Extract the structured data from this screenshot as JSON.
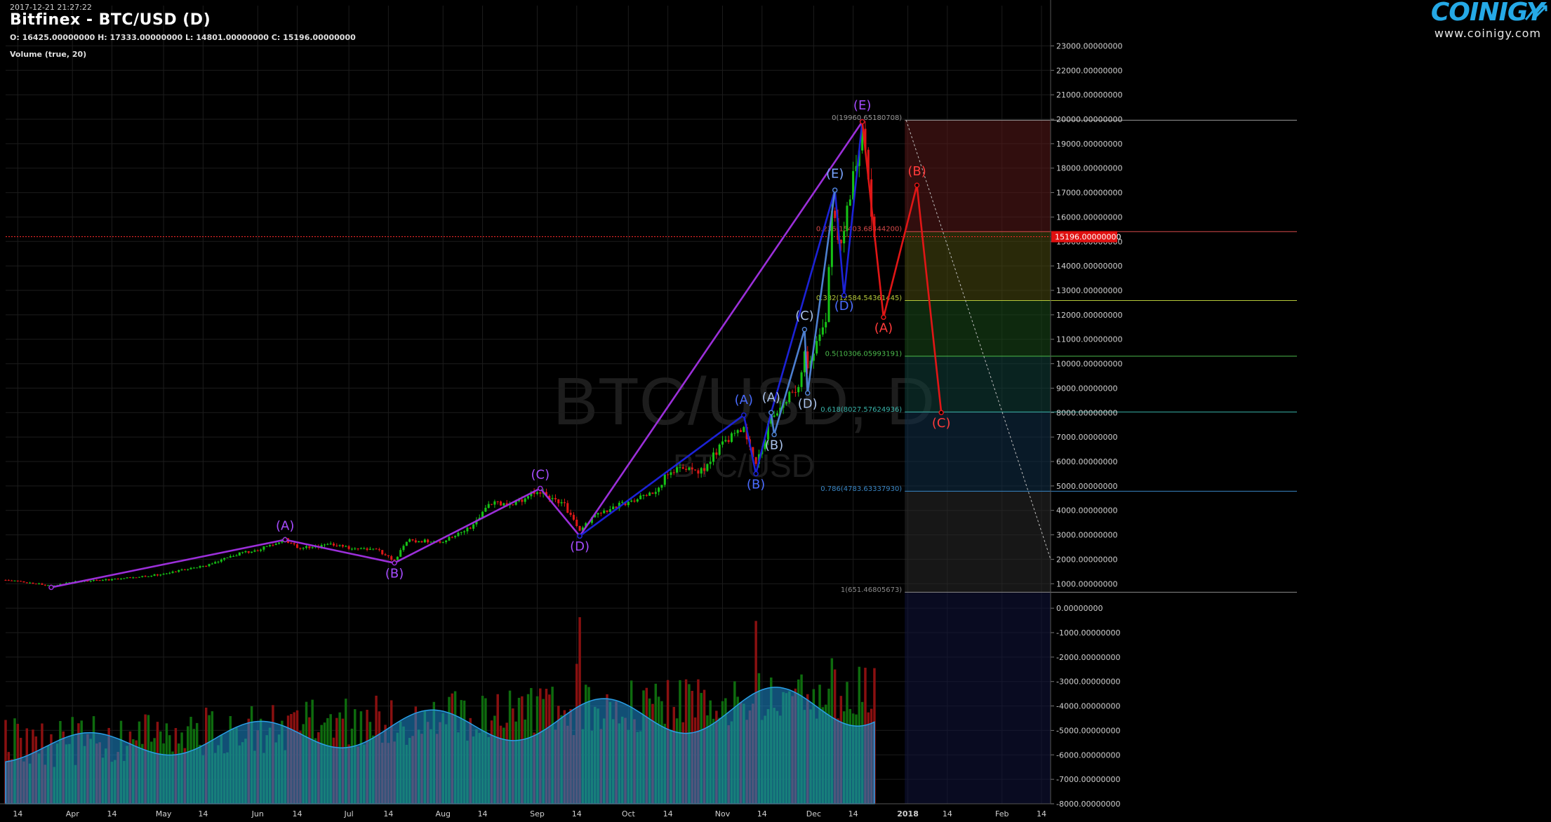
{
  "header": {
    "timestamp": "2017-12-21 21:27:22",
    "title": "Bitfinex - BTC/USD (D)",
    "ohlc": "O: 16425.00000000 H: 17333.00000000 L: 14801.00000000 C: 15196.00000000",
    "volume_label": "Volume (true, 20)"
  },
  "logo": {
    "word": "COINIGY",
    "url": "www.coinigy.com"
  },
  "watermark": {
    "main": "BTC/USD, D",
    "sub": "BTC/USD"
  },
  "chart_data": {
    "type": "candlestick",
    "title": "Bitfinex - BTC/USD (D)",
    "ylim": [
      -8000,
      23500
    ],
    "y_tick_labels": [
      "23000.00000000",
      "22000.00000000",
      "21000.00000000",
      "20000.00000000",
      "19000.00000000",
      "18000.00000000",
      "17000.00000000",
      "16000.00000000",
      "15000.00000000",
      "14000.00000000",
      "13000.00000000",
      "12000.00000000",
      "11000.00000000",
      "10000.00000000",
      "9000.00000000",
      "8000.00000000",
      "7000.00000000",
      "6000.00000000",
      "5000.00000000",
      "4000.00000000",
      "3000.00000000",
      "2000.00000000",
      "1000.00000000",
      "0.00000000",
      "-1000.00000000",
      "-2000.00000000",
      "-3000.00000000",
      "-4000.00000000",
      "-5000.00000000",
      "-6000.00000000",
      "-7000.00000000",
      "-8000.00000000"
    ],
    "x_tick_labels": [
      {
        "date": "2017-03-14",
        "label": "14"
      },
      {
        "date": "2017-04-01",
        "label": "Apr"
      },
      {
        "date": "2017-04-14",
        "label": "14"
      },
      {
        "date": "2017-05-01",
        "label": "May"
      },
      {
        "date": "2017-05-14",
        "label": "14"
      },
      {
        "date": "2017-06-01",
        "label": "Jun"
      },
      {
        "date": "2017-06-14",
        "label": "14"
      },
      {
        "date": "2017-07-01",
        "label": "Jul"
      },
      {
        "date": "2017-07-14",
        "label": "14"
      },
      {
        "date": "2017-08-01",
        "label": "Aug"
      },
      {
        "date": "2017-08-14",
        "label": "14"
      },
      {
        "date": "2017-09-01",
        "label": "Sep"
      },
      {
        "date": "2017-09-14",
        "label": "14"
      },
      {
        "date": "2017-10-01",
        "label": "Oct"
      },
      {
        "date": "2017-10-14",
        "label": "14"
      },
      {
        "date": "2017-11-01",
        "label": "Nov"
      },
      {
        "date": "2017-11-14",
        "label": "14"
      },
      {
        "date": "2017-12-01",
        "label": "Dec"
      },
      {
        "date": "2017-12-14",
        "label": "14"
      },
      {
        "date": "2018-01-01",
        "label": "2018",
        "bold": true
      },
      {
        "date": "2018-01-14",
        "label": "14"
      },
      {
        "date": "2018-02-01",
        "label": "Feb"
      },
      {
        "date": "2018-02-14",
        "label": "14"
      }
    ],
    "x_range": [
      "2017-03-10",
      "2018-02-17"
    ],
    "last_price": 15196,
    "last_price_label": "15196.00000000",
    "fibonacci": {
      "start_date": "2017-12-31",
      "levels": [
        {
          "ratio": "0",
          "price": 19960.65180708,
          "label": "0(19960.65180708)",
          "color": "#999999"
        },
        {
          "ratio": "0.236",
          "price": 15403.684442,
          "label": "0.236(15403.68444200)",
          "color": "#d84a4a"
        },
        {
          "ratio": "0.382",
          "price": 12584.54361445,
          "label": "0.382(12584.54361445)",
          "color": "#b6c93a"
        },
        {
          "ratio": "0.5",
          "price": 10306.05993191,
          "label": "0.5(10306.05993191)",
          "color": "#4cbb4c"
        },
        {
          "ratio": "0.618",
          "price": 8027.57624936,
          "label": "0.618(8027.57624936)",
          "color": "#38b2a8"
        },
        {
          "ratio": "0.786",
          "price": 4783.6333793,
          "label": "0.786(4783.63337930)",
          "color": "#3a86c4"
        },
        {
          "ratio": "1",
          "price": 651.46805673,
          "label": "1(651.46805673)",
          "color": "#8a8a8a"
        }
      ],
      "zone_colors": [
        "#5a1a1a",
        "#4a4a10",
        "#1a4a1a",
        "#10403a",
        "#103048",
        "#2a2a2a",
        "#10143c"
      ]
    },
    "wave_lines": [
      {
        "color": "#9b2fd9",
        "points": [
          [
            "2017-03-25",
            850
          ],
          [
            "2017-06-10",
            2800
          ],
          [
            "2017-07-16",
            1850
          ],
          [
            "2017-09-02",
            4900
          ],
          [
            "2017-09-15",
            2950
          ],
          [
            "2017-12-17",
            19900
          ]
        ]
      },
      {
        "color": "#1c22d6",
        "points": [
          [
            "2017-09-15",
            2950
          ],
          [
            "2017-11-08",
            7900
          ],
          [
            "2017-11-12",
            5500
          ],
          [
            "2017-11-17",
            8000
          ],
          [
            "2017-12-08",
            17100
          ],
          [
            "2017-12-11",
            12800
          ],
          [
            "2017-12-17",
            19900
          ]
        ]
      },
      {
        "color": "#4d7fcf",
        "points": [
          [
            "2017-11-17",
            8000
          ],
          [
            "2017-11-18",
            7100
          ],
          [
            "2017-11-28",
            11400
          ],
          [
            "2017-11-29",
            8800
          ],
          [
            "2017-12-08",
            17100
          ]
        ]
      },
      {
        "color": "#e01616",
        "points": [
          [
            "2017-12-17",
            19900
          ],
          [
            "2017-12-24",
            11900
          ],
          [
            "2018-01-04",
            17300
          ],
          [
            "2018-01-12",
            8000
          ]
        ]
      }
    ],
    "wave_labels": [
      {
        "text": "(A)",
        "date": "2017-06-10",
        "price": 3200,
        "color": "#a64cff"
      },
      {
        "text": "(B)",
        "date": "2017-07-16",
        "price": 1250,
        "color": "#a64cff"
      },
      {
        "text": "(C)",
        "date": "2017-09-02",
        "price": 5300,
        "color": "#a64cff"
      },
      {
        "text": "(D)",
        "date": "2017-09-15",
        "price": 2350,
        "color": "#a64cff"
      },
      {
        "text": "(E)",
        "date": "2017-12-17",
        "price": 20400,
        "color": "#a64cff"
      },
      {
        "text": "(A)",
        "date": "2017-11-08",
        "price": 8350,
        "color": "#4a6cff"
      },
      {
        "text": "(B)",
        "date": "2017-11-12",
        "price": 4900,
        "color": "#4a6cff"
      },
      {
        "text": "(E)",
        "date": "2017-12-08",
        "price": 17600,
        "color": "#7aa4ff"
      },
      {
        "text": "(D)",
        "date": "2017-12-11",
        "price": 12200,
        "color": "#4a6cff"
      },
      {
        "text": "(A)",
        "date": "2017-11-17",
        "price": 8450,
        "color": "#a8c0e8"
      },
      {
        "text": "(B)",
        "date": "2017-11-18",
        "price": 6500,
        "color": "#a8c0e8"
      },
      {
        "text": "(C)",
        "date": "2017-11-28",
        "price": 11800,
        "color": "#a8c0e8"
      },
      {
        "text": "(D)",
        "date": "2017-11-29",
        "price": 8200,
        "color": "#a8c0e8"
      },
      {
        "text": "(A)",
        "date": "2017-12-24",
        "price": 11300,
        "color": "#ff3b3b"
      },
      {
        "text": "(B)",
        "date": "2018-01-04",
        "price": 17700,
        "color": "#ff3b3b"
      },
      {
        "text": "(C)",
        "date": "2018-01-12",
        "price": 7400,
        "color": "#ff3b3b"
      }
    ],
    "price_anchors": [
      [
        "2017-03-10",
        1150
      ],
      [
        "2017-03-18",
        1050
      ],
      [
        "2017-03-25",
        900
      ],
      [
        "2017-04-01",
        1080
      ],
      [
        "2017-04-15",
        1180
      ],
      [
        "2017-05-01",
        1400
      ],
      [
        "2017-05-15",
        1750
      ],
      [
        "2017-05-25",
        2200
      ],
      [
        "2017-06-01",
        2400
      ],
      [
        "2017-06-10",
        2800
      ],
      [
        "2017-06-15",
        2450
      ],
      [
        "2017-06-25",
        2600
      ],
      [
        "2017-07-01",
        2450
      ],
      [
        "2017-07-10",
        2400
      ],
      [
        "2017-07-16",
        1950
      ],
      [
        "2017-07-20",
        2750
      ],
      [
        "2017-08-01",
        2750
      ],
      [
        "2017-08-10",
        3300
      ],
      [
        "2017-08-17",
        4300
      ],
      [
        "2017-08-25",
        4300
      ],
      [
        "2017-09-01",
        4800
      ],
      [
        "2017-09-05",
        4500
      ],
      [
        "2017-09-10",
        4200
      ],
      [
        "2017-09-15",
        3100
      ],
      [
        "2017-09-20",
        3850
      ],
      [
        "2017-10-01",
        4350
      ],
      [
        "2017-10-10",
        4800
      ],
      [
        "2017-10-15",
        5700
      ],
      [
        "2017-10-25",
        5600
      ],
      [
        "2017-11-01",
        6700
      ],
      [
        "2017-11-08",
        7400
      ],
      [
        "2017-11-12",
        5900
      ],
      [
        "2017-11-17",
        7800
      ],
      [
        "2017-11-20",
        8100
      ],
      [
        "2017-11-26",
        9200
      ],
      [
        "2017-11-28",
        10300
      ],
      [
        "2017-11-29",
        9900
      ],
      [
        "2017-12-01",
        10600
      ],
      [
        "2017-12-05",
        11700
      ],
      [
        "2017-12-07",
        16000
      ],
      [
        "2017-12-10",
        14900
      ],
      [
        "2017-12-13",
        17100
      ],
      [
        "2017-12-17",
        19500
      ],
      [
        "2017-12-19",
        17600
      ],
      [
        "2017-12-21",
        15196
      ]
    ],
    "volume_spikes": [
      {
        "date": "2017-09-15",
        "scale": 1.0
      },
      {
        "date": "2017-09-14",
        "scale": 0.75
      },
      {
        "date": "2017-11-12",
        "scale": 0.98
      },
      {
        "date": "2017-11-13",
        "scale": 0.7
      },
      {
        "date": "2017-12-07",
        "scale": 0.78
      },
      {
        "date": "2017-12-08",
        "scale": 0.72
      },
      {
        "date": "2017-10-12",
        "scale": 0.55
      },
      {
        "date": "2017-11-10",
        "scale": 0.5
      },
      {
        "date": "2017-11-09",
        "scale": 0.45
      }
    ]
  }
}
